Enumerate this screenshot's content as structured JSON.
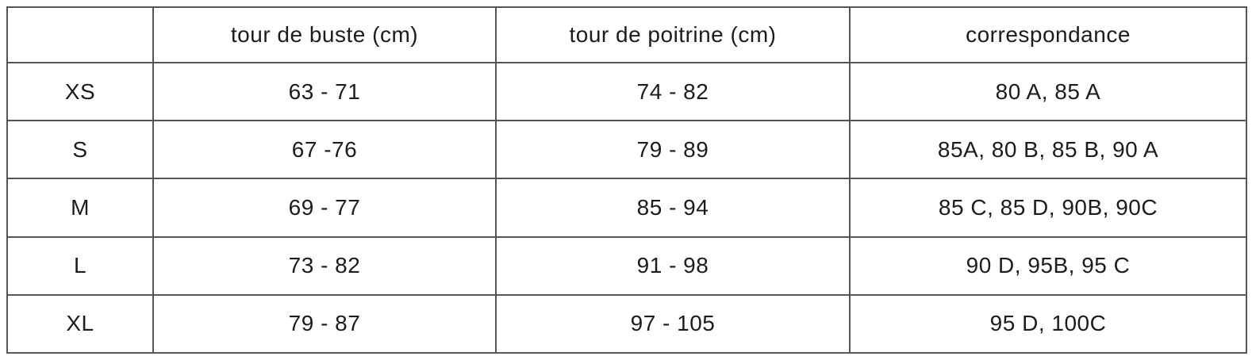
{
  "table": {
    "headers": {
      "size": "",
      "buste": "tour de  buste (cm)",
      "poitrine": "tour de poitrine (cm)",
      "correspondance": "correspondance"
    },
    "rows": [
      {
        "size": "XS",
        "buste": "63 - 71",
        "poitrine": "74 - 82",
        "correspondance": "80 A, 85 A"
      },
      {
        "size": "S",
        "buste": "67 -76",
        "poitrine": "79 - 89",
        "correspondance": "85A, 80 B, 85 B, 90 A"
      },
      {
        "size": "M",
        "buste": "69 - 77",
        "poitrine": "85 - 94",
        "correspondance": "85 C, 85 D, 90B, 90C"
      },
      {
        "size": "L",
        "buste": "73 - 82",
        "poitrine": "91 - 98",
        "correspondance": "90 D, 95B, 95 C"
      },
      {
        "size": "XL",
        "buste": "79 - 87",
        "poitrine": "97 - 105",
        "correspondance": "95 D, 100C"
      }
    ]
  },
  "colors": {
    "border": "#54575a",
    "text": "#1c1c1e",
    "background": "#ffffff"
  }
}
